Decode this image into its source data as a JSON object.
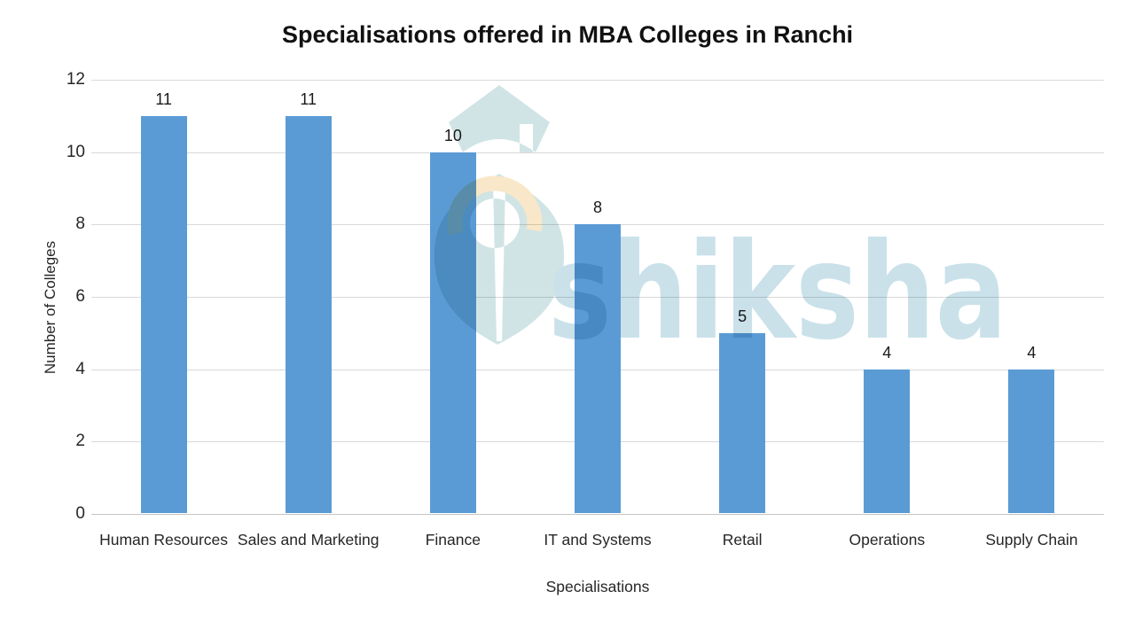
{
  "watermark": {
    "text": "shiksha",
    "logo_teal": "#cfe3e4",
    "text_color": "#c7e0e9",
    "cream": "#f9e6c6"
  },
  "chart_data": {
    "type": "bar",
    "title": "Specialisations offered in MBA Colleges in Ranchi",
    "categories": [
      "Human Resources",
      "Sales and Marketing",
      "Finance",
      "IT and Systems",
      "Retail",
      "Operations",
      "Supply Chain"
    ],
    "values": [
      11,
      11,
      10,
      8,
      5,
      4,
      4
    ],
    "xlabel": "Specialisations",
    "ylabel": "Number of Colleges",
    "ylim": [
      0,
      12
    ],
    "yticks": [
      0,
      2,
      4,
      6,
      8,
      10,
      12
    ],
    "bar_color": "#5b9bd5",
    "gridline_color": "#d9d9d9",
    "grid": true,
    "legend": "none",
    "data_labels": true
  }
}
